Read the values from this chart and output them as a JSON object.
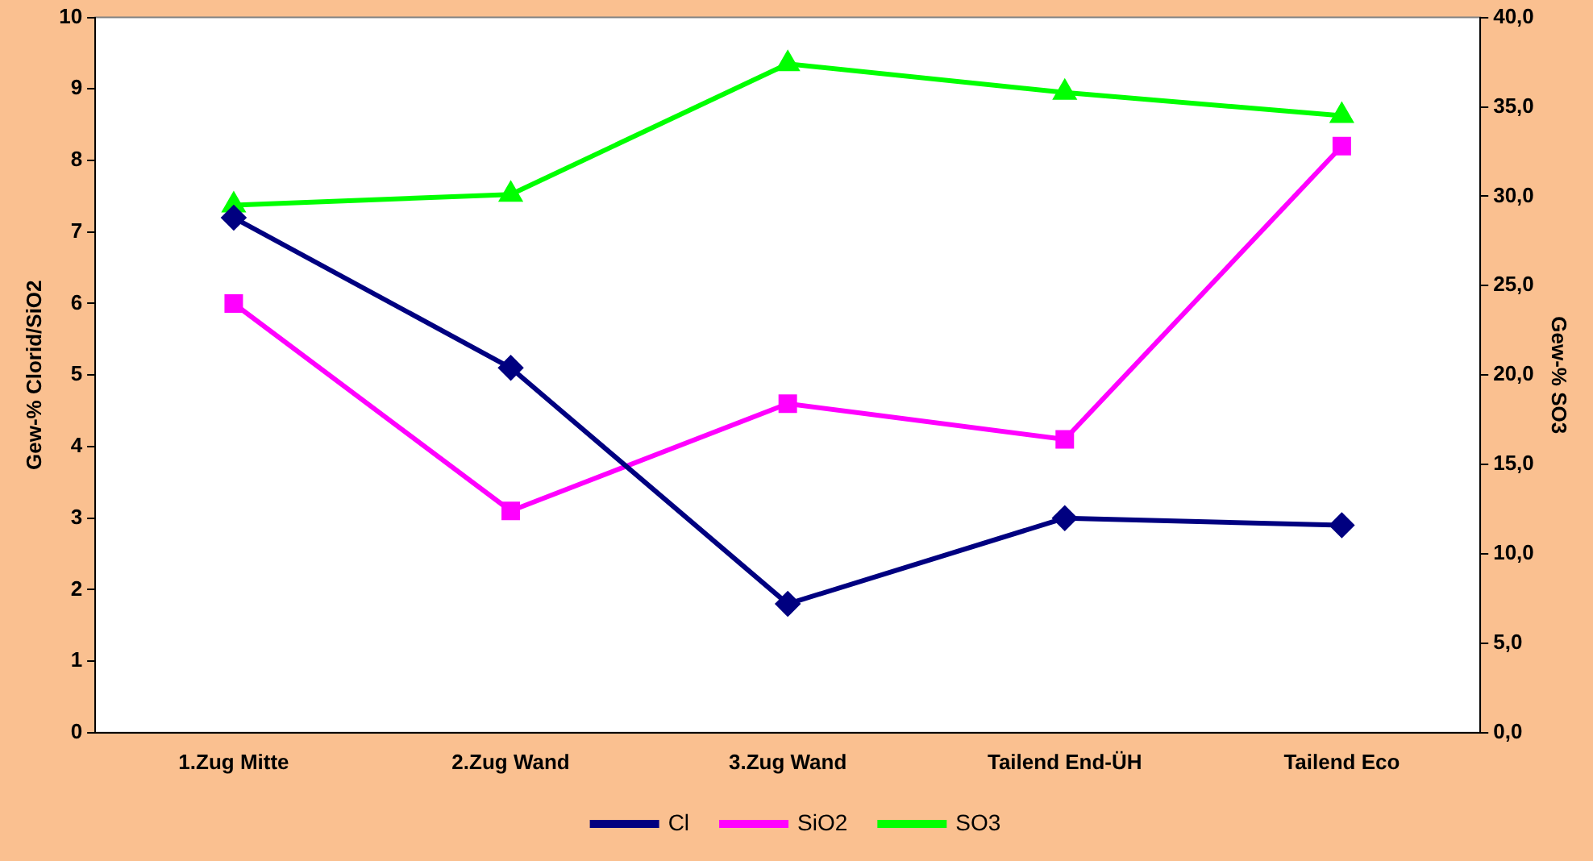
{
  "chart_data": {
    "type": "line",
    "categories": [
      "1.Zug Mitte",
      "2.Zug Wand",
      "3.Zug Wand",
      "Tailend End-ÜH",
      "Tailend Eco"
    ],
    "ylabel": "Gew-% Clorid/SiO2",
    "y2label": "Gew-% SO3",
    "ylim": [
      0,
      10
    ],
    "yticks": [
      0,
      1,
      2,
      3,
      4,
      5,
      6,
      7,
      8,
      9,
      10
    ],
    "y2lim": [
      0,
      40
    ],
    "y2ticks": [
      {
        "value": 0,
        "label": "0,0"
      },
      {
        "value": 5,
        "label": "5,0"
      },
      {
        "value": 10,
        "label": "10,0"
      },
      {
        "value": 15,
        "label": "15,0"
      },
      {
        "value": 20,
        "label": "20,0"
      },
      {
        "value": 25,
        "label": "25,0"
      },
      {
        "value": 30,
        "label": "30,0"
      },
      {
        "value": 35,
        "label": "35,0"
      },
      {
        "value": 40,
        "label": "40,0"
      }
    ],
    "grid": false,
    "legend": "bottom",
    "line_style": "solid",
    "series": [
      {
        "name": "Cl",
        "color": "#000080",
        "marker": "diamond",
        "values": [
          7.2,
          5.1,
          1.8,
          3.0,
          2.9
        ]
      },
      {
        "name": "SiO2",
        "color": "#ff00ff",
        "marker": "square",
        "values": [
          6.0,
          3.1,
          4.6,
          4.1,
          8.2
        ]
      },
      {
        "name": "SO3",
        "color": "#00ff00",
        "marker": "triangle",
        "axis": "y2",
        "values": [
          29.5,
          30.1,
          37.4,
          35.8,
          34.5
        ]
      }
    ]
  }
}
